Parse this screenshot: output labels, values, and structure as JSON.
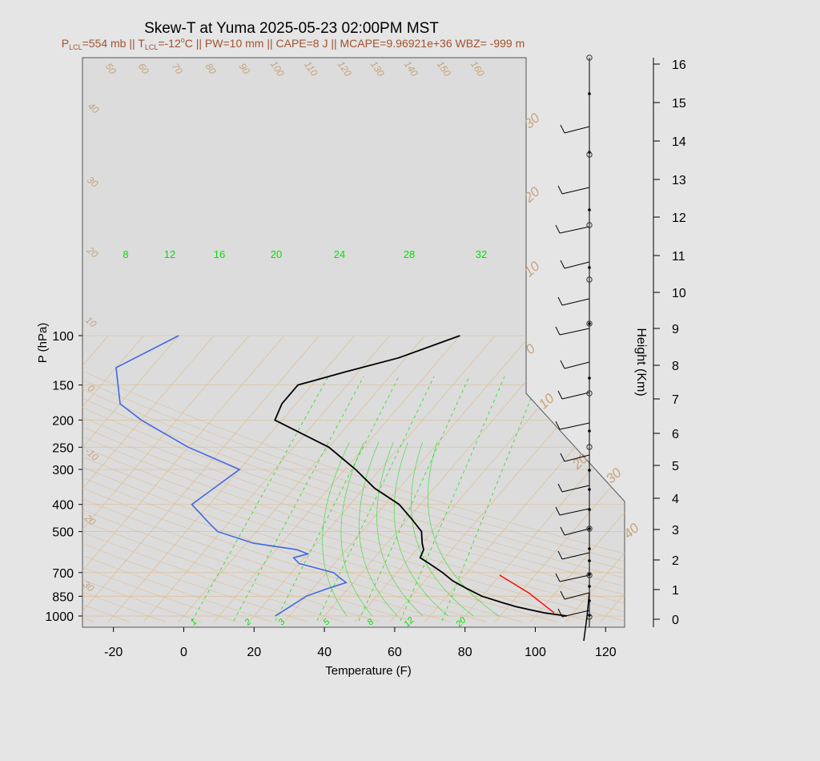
{
  "title": "Skew-T at Yuma 2025-05-23 02:00PM MST",
  "subtitle": {
    "plcl_prefix": "P",
    "plcl_sub": "LCL",
    "plcl_value": "=554 mb || T",
    "tlcl_sub": "LCL",
    "tlcl_value": "=-12",
    "tlcl_sup": "o",
    "rest": "C || PW=10 mm || CAPE=8 J || MCAPE=9.96921e+36 WBZ= -999 m"
  },
  "axes": {
    "ylabel": "P (hPa)",
    "xlabel": "Temperature (F)",
    "height_label": "Height (Km)",
    "pressure_ticks": [
      "100",
      "150",
      "200",
      "250",
      "300",
      "400",
      "500",
      "700",
      "850",
      "1000"
    ],
    "temperature_ticks": [
      "-20",
      "0",
      "20",
      "40",
      "60",
      "80",
      "100",
      "120"
    ],
    "height_ticks": [
      "0",
      "1",
      "2",
      "3",
      "4",
      "5",
      "6",
      "7",
      "8",
      "9",
      "10",
      "11",
      "12",
      "13",
      "14",
      "15",
      "16"
    ]
  },
  "colors": {
    "background": "#e5e5e5",
    "plot_bg": "#dcdcdc",
    "temperature": "#000000",
    "dewpoint": "#4169e1",
    "isotherm": "#deb887",
    "mixing_ratio": "#00e000",
    "parcel": "#ff0000"
  },
  "chart_data": {
    "type": "line",
    "title": "Skew-T at Yuma 2025-05-23 02:00PM MST",
    "xlabel": "Temperature (F)",
    "ylabel": "P (hPa)",
    "xlim": [
      -28,
      125
    ],
    "ylim": [
      1050,
      100
    ],
    "y_scale": "log",
    "grid": true,
    "series": [],
    "temperature_profile": [
      [
        1000,
        109
      ],
      [
        975,
        102
      ],
      [
        950,
        97
      ],
      [
        925,
        92
      ],
      [
        900,
        88
      ],
      [
        850,
        80
      ],
      [
        800,
        74
      ],
      [
        750,
        68
      ],
      [
        700,
        63
      ],
      [
        650,
        57
      ],
      [
        620,
        53
      ],
      [
        580,
        52
      ],
      [
        550,
        50
      ],
      [
        500,
        47
      ],
      [
        450,
        41
      ],
      [
        400,
        34
      ],
      [
        350,
        23
      ],
      [
        300,
        13
      ],
      [
        250,
        0
      ],
      [
        200,
        -22
      ],
      [
        175,
        -24
      ],
      [
        150,
        -24
      ],
      [
        135,
        -14
      ],
      [
        120,
        -2
      ],
      [
        100,
        10
      ]
    ],
    "dewpoint_profile": [
      [
        1000,
        26
      ],
      [
        925,
        28
      ],
      [
        850,
        30
      ],
      [
        800,
        34
      ],
      [
        760,
        38
      ],
      [
        730,
        35
      ],
      [
        700,
        32
      ],
      [
        650,
        20
      ],
      [
        620,
        17
      ],
      [
        600,
        20
      ],
      [
        580,
        16
      ],
      [
        550,
        2
      ],
      [
        500,
        -11
      ],
      [
        470,
        -15
      ],
      [
        400,
        -25
      ],
      [
        300,
        -20
      ],
      [
        250,
        -40
      ],
      [
        200,
        -60
      ],
      [
        175,
        -70
      ],
      [
        130,
        -80
      ],
      [
        100,
        -70
      ]
    ],
    "isotherm_labels": [
      "50",
      "60",
      "70",
      "80",
      "90",
      "100",
      "110",
      "120",
      "130",
      "140",
      "150",
      "160"
    ],
    "dry_adiabat_labels": [
      "40",
      "30",
      "20",
      "10",
      "0",
      "-10",
      "20",
      "30"
    ],
    "big_isotherm_labels": [
      "30",
      "20",
      "10",
      "0",
      "10",
      "20",
      "30",
      "40"
    ],
    "mixing_ratio_labels_top": [
      "8",
      "12",
      "16",
      "20",
      "24",
      "28",
      "32"
    ],
    "mixing_ratio_labels_bottom": [
      "1",
      "2",
      "3",
      "5",
      "8",
      "12",
      "20"
    ]
  }
}
